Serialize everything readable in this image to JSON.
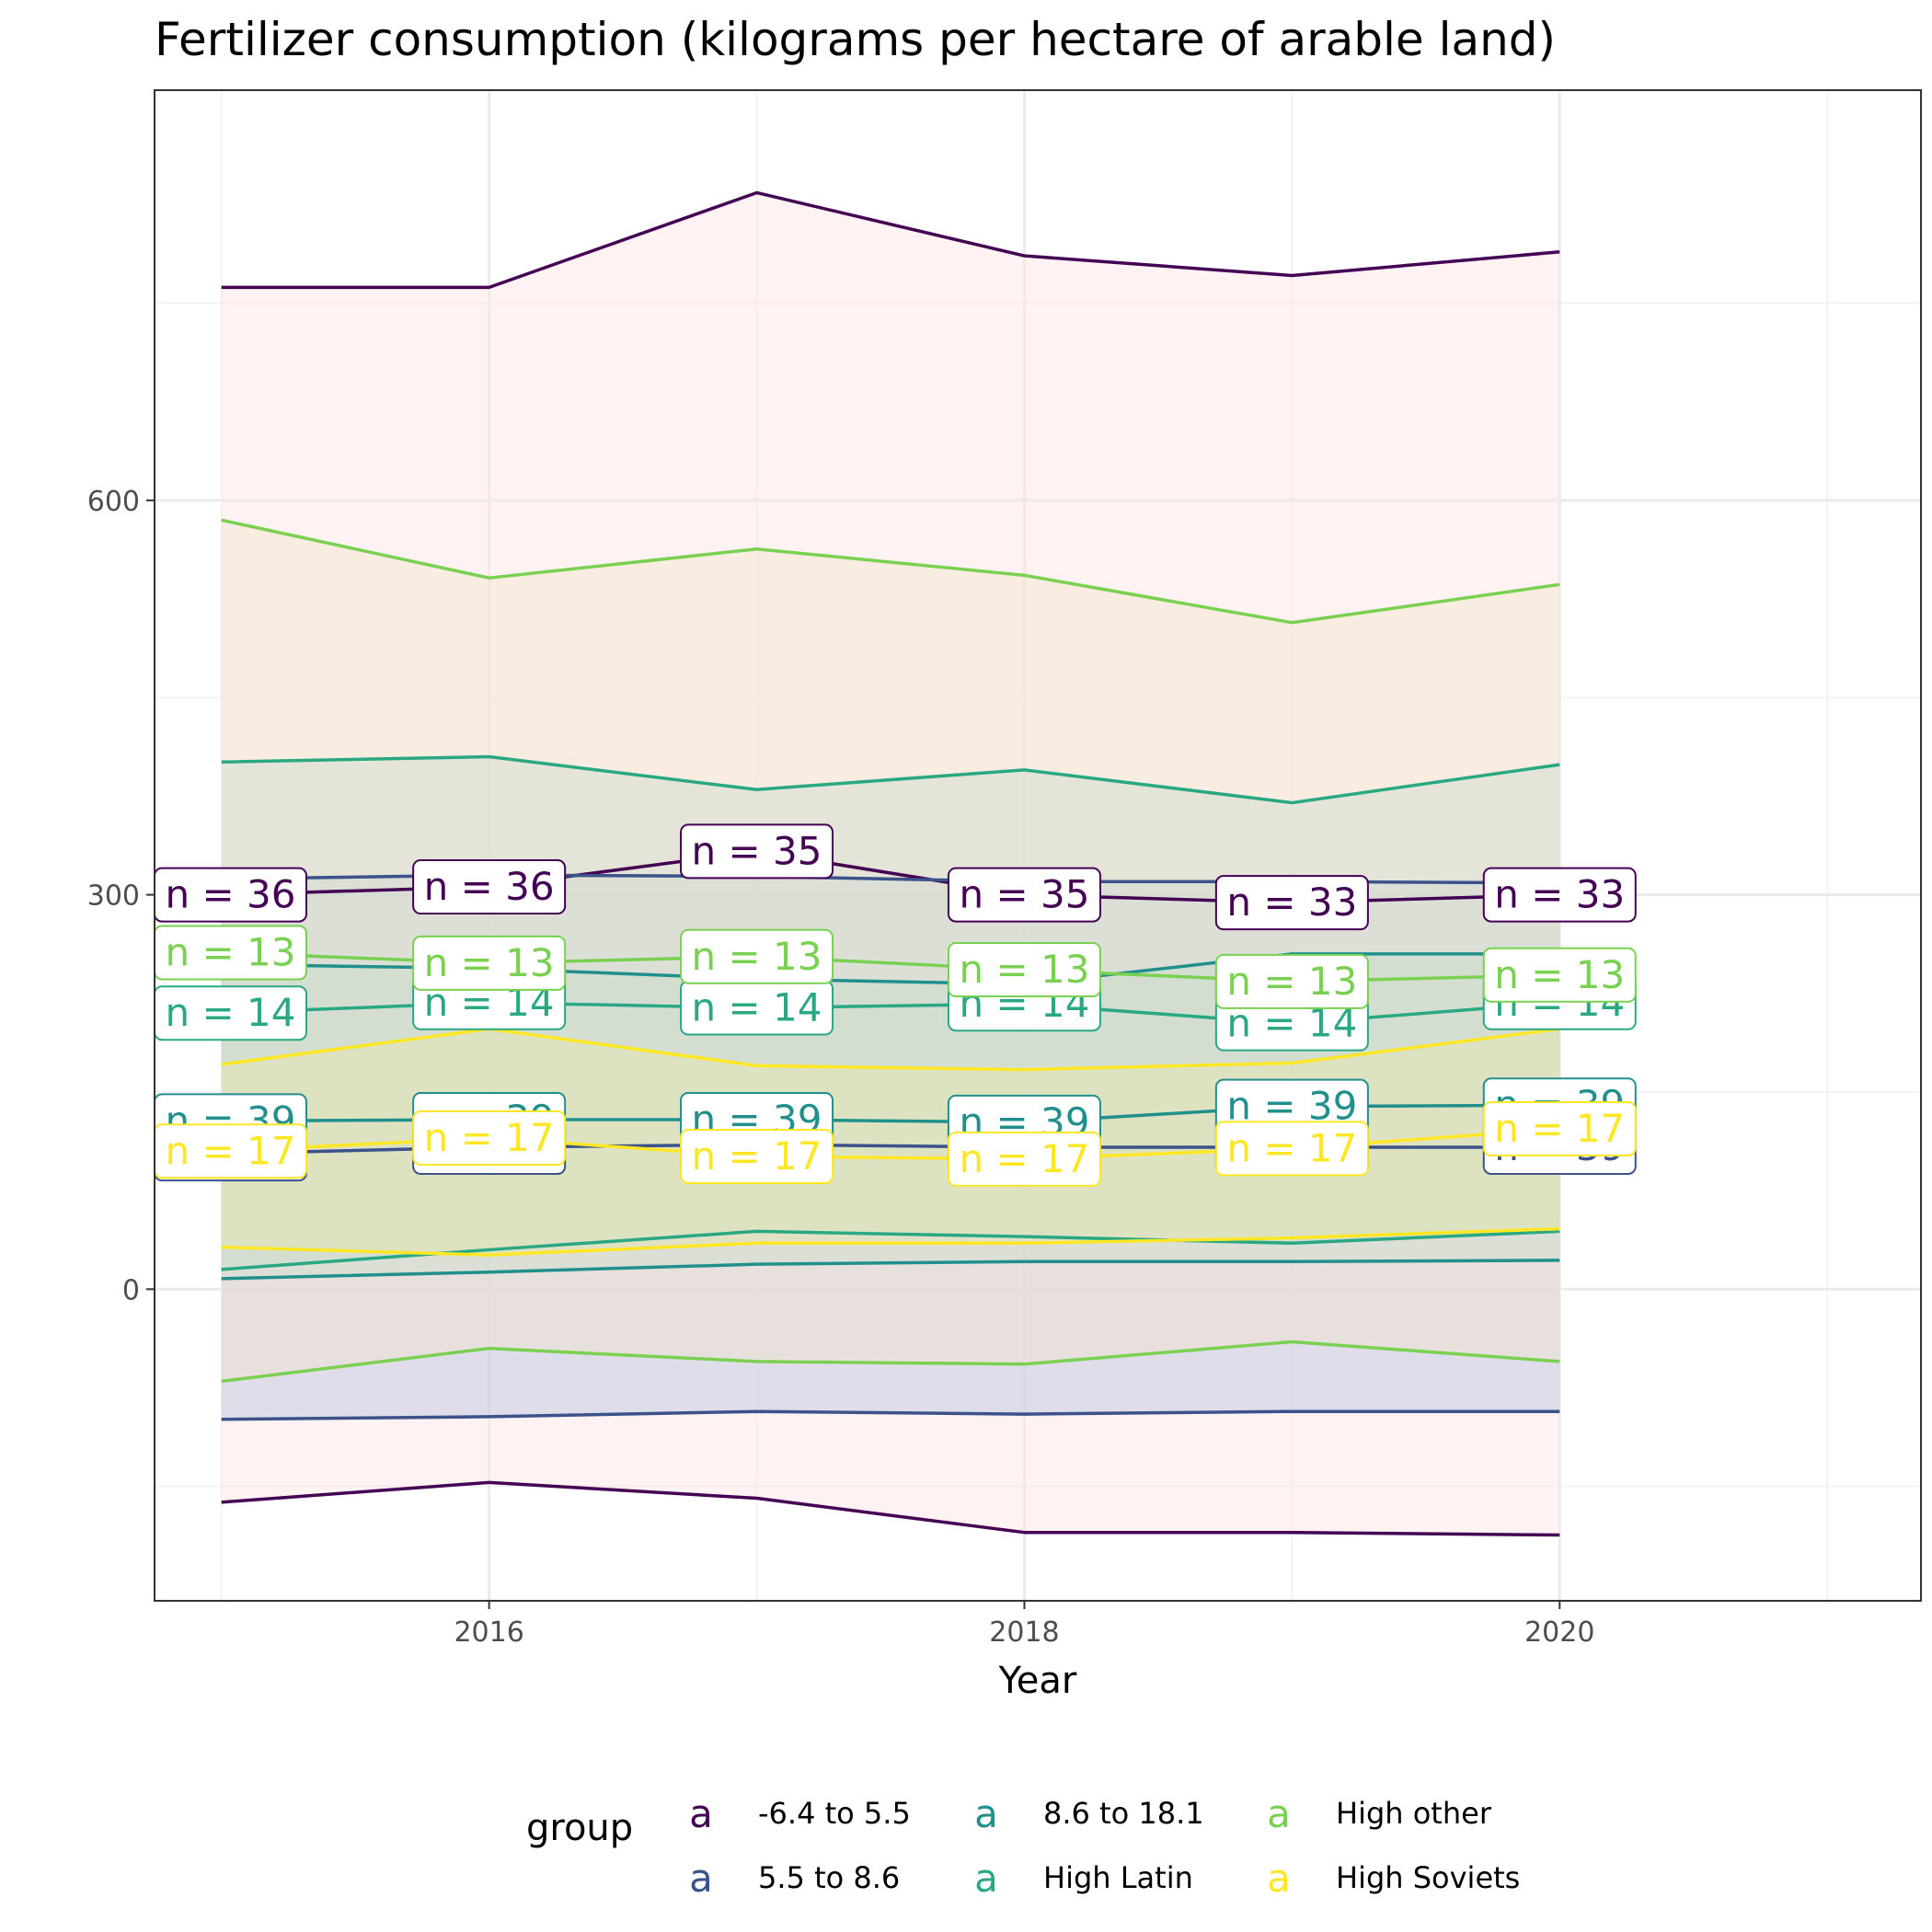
{
  "chart_data": {
    "type": "area",
    "title": "Fertilizer consumption (kilograms per hectare of arable land)",
    "xlabel": "Year",
    "ylabel": "",
    "xlim": [
      2014.75,
      2021.35
    ],
    "ylim": [
      -237,
      912
    ],
    "x_ticks": [
      2016,
      2018,
      2020
    ],
    "y_ticks": [
      0,
      300,
      600
    ],
    "grid": true,
    "legend_title": "group",
    "legend_position": "bottom",
    "legend_key_glyph": "a",
    "x": [
      2015,
      2016,
      2017,
      2018,
      2019,
      2020
    ],
    "series": [
      {
        "name": "-6.4 to 5.5",
        "color": "#440154",
        "fill": "#fde2e2",
        "median": [
          300,
          306,
          333,
          300,
          294,
          300
        ],
        "upper": [
          762,
          762,
          834,
          786,
          771,
          789
        ],
        "lower": [
          -162,
          -147,
          -159,
          -185,
          -185,
          -187
        ],
        "n": [
          "n = 36",
          "n = 36",
          "n = 35",
          "n = 35",
          "n = 33",
          "n = 33"
        ]
      },
      {
        "name": "5.5 to 8.6",
        "color": "#3b528b",
        "fill": "#b9c4de",
        "median": [
          103,
          108,
          110,
          108,
          108,
          108
        ],
        "upper": [
          312,
          315,
          314,
          310,
          310,
          309
        ],
        "lower": [
          -99,
          -97,
          -93,
          -95,
          -93,
          -93
        ],
        "n": [
          "n = 39",
          "n = 39",
          "n = 39",
          "n = 39",
          "n = 39",
          "n = 39"
        ]
      },
      {
        "name": "8.6 to 18.1",
        "color": "#21908d",
        "fill": "#a8d8cf",
        "median": [
          128,
          129,
          129,
          127,
          139,
          140
        ],
        "upper": [
          247,
          244,
          236,
          232,
          255,
          255
        ],
        "lower": [
          8,
          13,
          19,
          21,
          21,
          22
        ],
        "n": [
          "n = 39",
          "n = 39",
          "n = 39",
          "n = 39",
          "n = 39",
          "n = 39"
        ]
      },
      {
        "name": "High Latin",
        "color": "#2aa883",
        "fill": "#a8d8cf",
        "median": [
          210,
          218,
          214,
          217,
          202,
          218
        ],
        "upper": [
          401,
          405,
          380,
          395,
          370,
          399
        ],
        "lower": [
          15,
          30,
          44,
          40,
          35,
          44
        ],
        "n": [
          "n = 14",
          "n = 14",
          "n = 14",
          "n = 14",
          "n = 14",
          "n = 14"
        ]
      },
      {
        "name": "High other",
        "color": "#7ad151",
        "fill": "#f5e4cc",
        "median": [
          256,
          248,
          253,
          243,
          234,
          239
        ],
        "upper": [
          585,
          541,
          563,
          543,
          507,
          536
        ],
        "lower": [
          -70,
          -45,
          -55,
          -57,
          -40,
          -55
        ],
        "n": [
          "n = 13",
          "n = 13",
          "n = 13",
          "n = 13",
          "n = 13",
          "n = 13"
        ]
      },
      {
        "name": "High Soviets",
        "color": "#fde725",
        "fill": "#e9e7ae",
        "median": [
          105,
          115,
          101,
          99,
          107,
          122
        ],
        "upper": [
          171,
          198,
          170,
          167,
          172,
          198
        ],
        "lower": [
          32,
          26,
          35,
          35,
          39,
          46
        ],
        "n": [
          "n = 17",
          "n = 17",
          "n = 17",
          "n = 17",
          "n = 17",
          "n = 17"
        ]
      }
    ]
  }
}
